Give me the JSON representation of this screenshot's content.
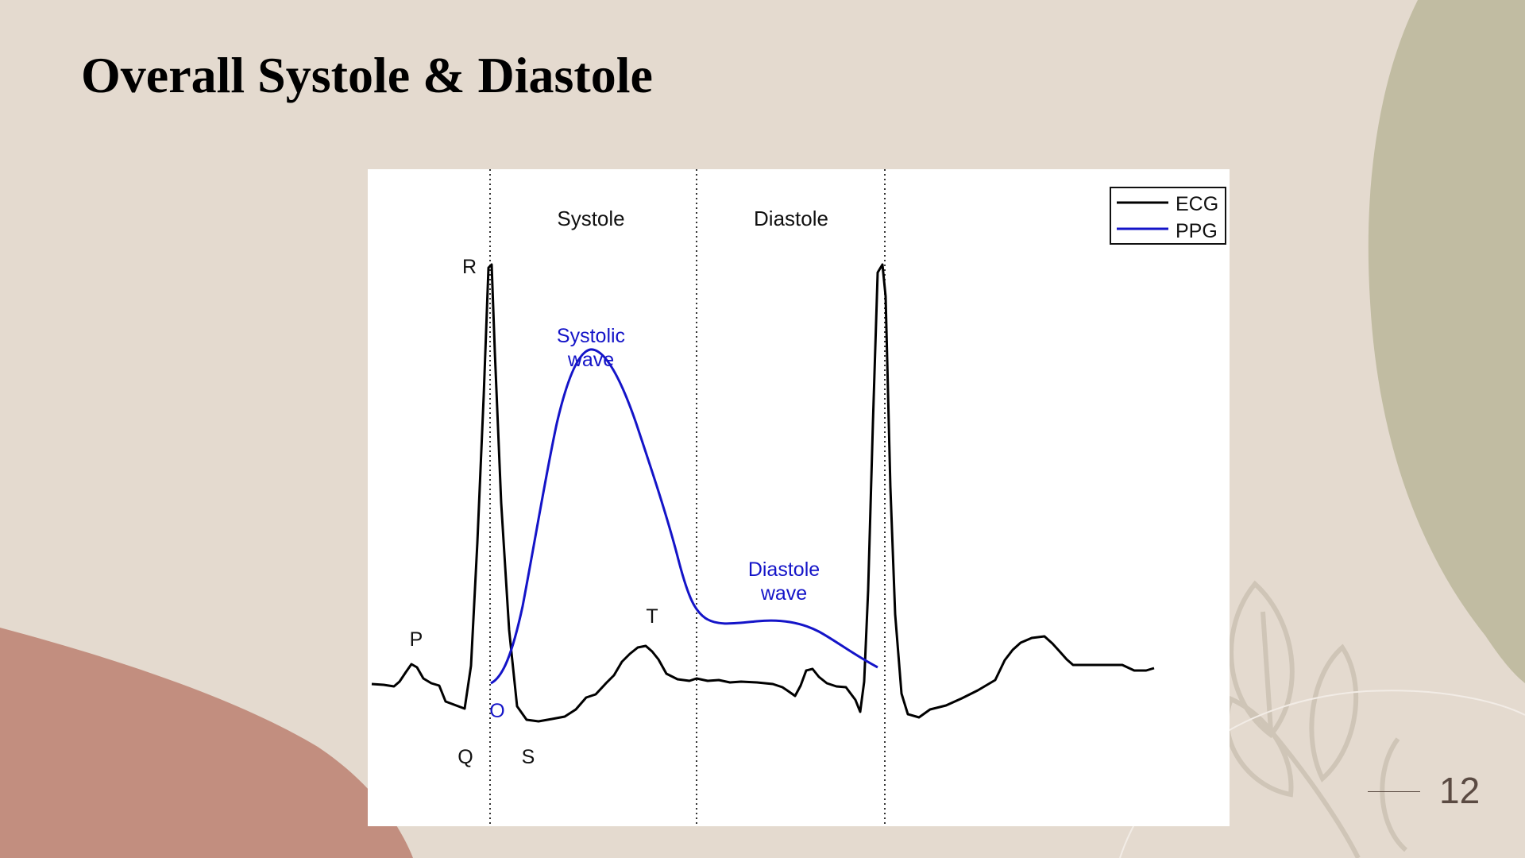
{
  "slide": {
    "title": "Overall Systole & Diastole",
    "page_number": "12",
    "colors": {
      "background": "#e4dacf",
      "olive_shape": "#c1bca2",
      "rose_shape": "#c28e7f",
      "leaf_outline": "#cfc5b7"
    }
  },
  "figure": {
    "phases": {
      "systole": "Systole",
      "diastole": "Diastole"
    },
    "legend": {
      "ecg": "ECG",
      "ppg": "PPG"
    },
    "ecg_labels": {
      "p": "P",
      "q": "Q",
      "r": "R",
      "s": "S",
      "t": "T"
    },
    "ppg_labels": {
      "o": "O",
      "systolic_line1": "Systolic",
      "systolic_line2": "wave",
      "diastole_line1": "Diastole",
      "diastole_line2": "wave"
    },
    "colors": {
      "ecg": "#000000",
      "ppg": "#1414c8"
    }
  }
}
